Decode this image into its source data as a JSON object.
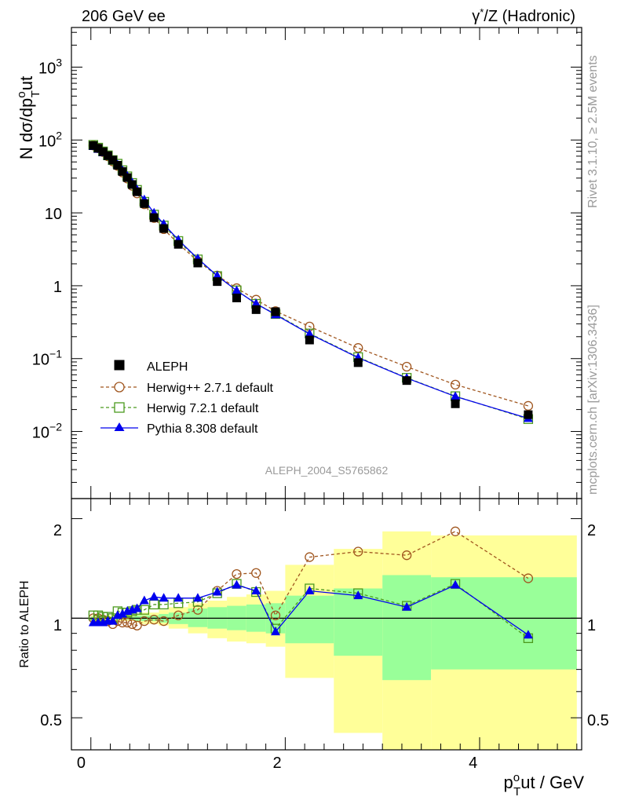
{
  "header": {
    "left": "206 GeV ee",
    "right_prefix": "γ",
    "right_sup": "*",
    "right_suffix": "/Z (Hadronic)"
  },
  "side_texts": {
    "rivet": "Rivet 3.1.10, ≥ 2.5M events",
    "mcplots": "mcplots.cern.ch [arXiv:1306.3436]"
  },
  "analysis_label": "ALEPH_2004_S5765862",
  "y_label_main": {
    "p1": "N dσ/dp",
    "sup": "o",
    "sub": "T",
    "p2": "ut"
  },
  "y_label_ratio": "Ratio to ALEPH",
  "x_label": {
    "p1": "p",
    "sup": "o",
    "sub": "T",
    "p2": "ut / GeV"
  },
  "main_ticks": [
    {
      "v": 1000,
      "base": "10",
      "exp": "3",
      "plain": ""
    },
    {
      "v": 100,
      "base": "10",
      "exp": "2",
      "plain": ""
    },
    {
      "v": 10,
      "base": "",
      "exp": "",
      "plain": "10"
    },
    {
      "v": 1,
      "base": "",
      "exp": "",
      "plain": "1"
    },
    {
      "v": 0.1,
      "base": "10",
      "exp": "−1",
      "plain": ""
    },
    {
      "v": 0.01,
      "base": "10",
      "exp": "−2",
      "plain": ""
    }
  ],
  "ratio_ticks": [
    "0.5",
    "1",
    "2"
  ],
  "x_ticks": [
    "0",
    "2",
    "4"
  ],
  "colors": {
    "aleph": "#000000",
    "herwigpp": "#a0561f",
    "herwig7": "#4c9a1e",
    "pythia": "#0000ee",
    "band_outer": "#ffff99",
    "band_inner": "#99ff99"
  },
  "chart_data": {
    "type": "scatter",
    "title": "206 GeV ee",
    "xlabel": "p_T^out / GeV",
    "ylabel": "N dσ/dp_T^out",
    "xlim": [
      -0.2,
      5.05
    ],
    "ylim": [
      0.0012,
      3500
    ],
    "y_scale": "log",
    "ratio_ylim": [
      0.4,
      2.3
    ],
    "ratio_y_scale": "log",
    "x": [
      0.025,
      0.075,
      0.125,
      0.175,
      0.225,
      0.275,
      0.325,
      0.375,
      0.425,
      0.475,
      0.55,
      0.65,
      0.75,
      0.9,
      1.1,
      1.3,
      1.5,
      1.7,
      1.9,
      2.25,
      2.75,
      3.25,
      3.75,
      4.5
    ],
    "legend": {
      "placement": "bottom-left",
      "entries": [
        "ALEPH",
        "Herwig++ 2.7.1 default",
        "Herwig 7.2.1 default",
        "Pythia 8.308 default"
      ]
    },
    "series": [
      {
        "name": "ALEPH",
        "marker": "filled-square",
        "values": [
          84,
          77,
          69,
          61,
          53,
          45,
          37,
          30.5,
          24.5,
          19.5,
          13.4,
          8.6,
          6.1,
          3.7,
          2.05,
          1.14,
          0.68,
          0.47,
          0.44,
          0.18,
          0.088,
          0.05,
          0.024,
          0.017
        ]
      },
      {
        "name": "Herwig++ 2.7.1 default",
        "marker": "open-circle",
        "line": "dashed",
        "ratio": [
          1.0,
          1.0,
          0.99,
          0.98,
          0.96,
          0.98,
          0.97,
          0.97,
          0.96,
          0.95,
          0.98,
          0.99,
          0.98,
          1.02,
          1.06,
          1.21,
          1.36,
          1.37,
          1.02,
          1.53,
          1.59,
          1.55,
          1.83,
          1.32
        ]
      },
      {
        "name": "Herwig 7.2.1 default",
        "marker": "open-square",
        "line": "dashed",
        "ratio": [
          1.02,
          1.02,
          1.01,
          1.01,
          1.0,
          1.05,
          1.04,
          1.04,
          1.05,
          1.06,
          1.06,
          1.1,
          1.1,
          1.11,
          1.12,
          1.19,
          1.27,
          1.2,
          0.93,
          1.23,
          1.19,
          1.09,
          1.27,
          0.87
        ]
      },
      {
        "name": "Pythia 8.308 default",
        "marker": "filled-triangle",
        "line": "solid",
        "ratio": [
          0.97,
          0.97,
          0.97,
          0.98,
          0.98,
          1.02,
          1.03,
          1.05,
          1.06,
          1.07,
          1.13,
          1.16,
          1.15,
          1.15,
          1.15,
          1.2,
          1.26,
          1.21,
          0.91,
          1.21,
          1.17,
          1.08,
          1.26,
          0.89
        ]
      }
    ],
    "uncertainty_bands": {
      "x_edges": [
        0,
        0.05,
        0.1,
        0.15,
        0.2,
        0.25,
        0.3,
        0.35,
        0.4,
        0.45,
        0.5,
        0.6,
        0.7,
        0.8,
        1.0,
        1.2,
        1.4,
        1.6,
        1.8,
        2.0,
        2.5,
        3.0,
        3.5,
        4.0,
        5.0
      ],
      "inner_low": [
        0.99,
        0.99,
        0.99,
        0.99,
        0.99,
        0.99,
        0.99,
        0.99,
        0.99,
        0.98,
        0.98,
        0.98,
        0.97,
        0.96,
        0.94,
        0.93,
        0.92,
        0.91,
        0.9,
        0.84,
        0.77,
        0.65,
        0.7,
        0.7
      ],
      "inner_high": [
        1.01,
        1.01,
        1.01,
        1.01,
        1.01,
        1.01,
        1.01,
        1.01,
        1.01,
        1.02,
        1.02,
        1.02,
        1.03,
        1.04,
        1.07,
        1.08,
        1.09,
        1.1,
        1.11,
        1.17,
        1.23,
        1.35,
        1.33,
        1.33
      ],
      "outer_low": [
        0.98,
        0.98,
        0.98,
        0.98,
        0.98,
        0.98,
        0.98,
        0.98,
        0.98,
        0.97,
        0.96,
        0.96,
        0.95,
        0.93,
        0.9,
        0.87,
        0.85,
        0.84,
        0.82,
        0.66,
        0.45,
        0.3,
        0.3,
        0.3
      ],
      "outer_high": [
        1.02,
        1.02,
        1.02,
        1.02,
        1.02,
        1.02,
        1.02,
        1.02,
        1.02,
        1.03,
        1.04,
        1.04,
        1.06,
        1.08,
        1.11,
        1.13,
        1.16,
        1.18,
        1.21,
        1.45,
        1.62,
        1.83,
        1.78,
        1.78
      ]
    }
  }
}
